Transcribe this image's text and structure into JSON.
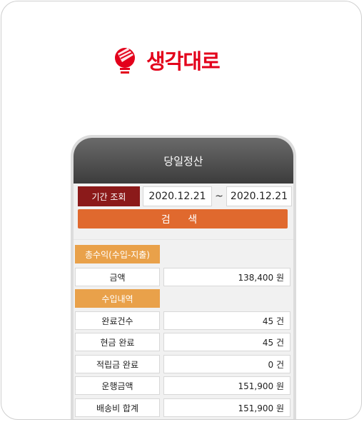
{
  "brand": {
    "name": "생각대로",
    "icon": "lightbulb-logo-icon",
    "color": "#e3001b"
  },
  "screen": {
    "title": "당일정산",
    "period_label": "기간 조회",
    "date_from": "2020.12.21",
    "separator": "~",
    "date_to": "2020.12.21",
    "search_label": "검 색"
  },
  "sections": {
    "net_income": "총수익(수입-지출)",
    "income_detail": "수입내역"
  },
  "rows": [
    {
      "label": "금액",
      "value": "138,400 원"
    },
    {
      "label": "완료건수",
      "value": "45 건"
    },
    {
      "label": "현금 완료",
      "value": "45 건"
    },
    {
      "label": "적립금 완료",
      "value": "0 건"
    },
    {
      "label": "운행금액",
      "value": "151,900 원"
    },
    {
      "label": "배송비 합계",
      "value": "151,900 원"
    }
  ],
  "colors": {
    "header_gradient": [
      "#6a6a6a",
      "#3c3c3c"
    ],
    "period_label_bg": "#8b1a1a",
    "search_button_bg": "#e0692e",
    "section_bg": "#e9a14a"
  }
}
